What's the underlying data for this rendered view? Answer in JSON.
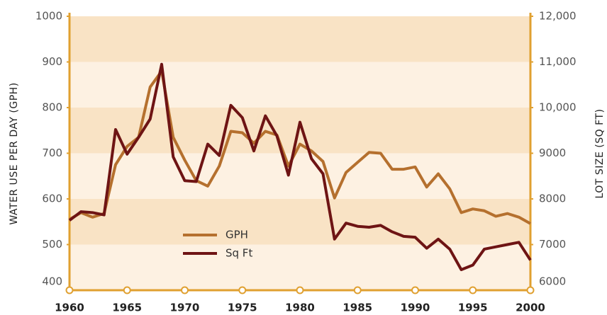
{
  "chart_data": {
    "type": "line",
    "y_label": "WATER USE PER DAY (GPH)",
    "y2_label": "LOT SIZE (SQ FT)",
    "x": [
      1960,
      1961,
      1962,
      1963,
      1964,
      1965,
      1966,
      1967,
      1968,
      1969,
      1970,
      1971,
      1972,
      1973,
      1974,
      1975,
      1976,
      1977,
      1978,
      1979,
      1980,
      1981,
      1982,
      1983,
      1984,
      1985,
      1986,
      1987,
      1988,
      1989,
      1990,
      1991,
      1992,
      1993,
      1994,
      1995,
      1996,
      1997,
      1998,
      1999,
      2000
    ],
    "xlim": [
      1960,
      2000
    ],
    "xticks": [
      1960,
      1965,
      1970,
      1975,
      1980,
      1985,
      1990,
      1995,
      2000
    ],
    "ylim": [
      400,
      1000
    ],
    "yticks": [
      400,
      500,
      600,
      700,
      800,
      900,
      1000
    ],
    "y2lim": [
      6000,
      12000
    ],
    "y2ticks": [
      6000,
      7000,
      8000,
      9000,
      {
        "value": 10000,
        "label": "10,000"
      },
      {
        "value": 11000,
        "label": "11,000"
      },
      {
        "value": 12000,
        "label": "12,000"
      }
    ],
    "series": [
      {
        "name": "GPH",
        "color": "#b5702e",
        "values": [
          555,
          570,
          560,
          568,
          675,
          715,
          735,
          845,
          880,
          735,
          685,
          640,
          628,
          672,
          748,
          745,
          722,
          748,
          740,
          672,
          720,
          705,
          682,
          602,
          658,
          680,
          702,
          700,
          665,
          665,
          670,
          626,
          655,
          622,
          570,
          578,
          574,
          562,
          568,
          560,
          546
        ]
      },
      {
        "name": "Sq Ft",
        "color": "#6e1414",
        "axis": "y2",
        "values": [
          7530,
          7720,
          7700,
          7650,
          9520,
          8980,
          9350,
          9750,
          10950,
          8920,
          8400,
          8380,
          9200,
          8950,
          10050,
          9780,
          9050,
          9820,
          9380,
          8520,
          9680,
          8880,
          8550,
          7120,
          7470,
          7400,
          7380,
          7420,
          7280,
          7180,
          7160,
          6920,
          7120,
          6900,
          6450,
          6550,
          6900,
          6950,
          7000,
          7050,
          6660
        ]
      }
    ]
  }
}
